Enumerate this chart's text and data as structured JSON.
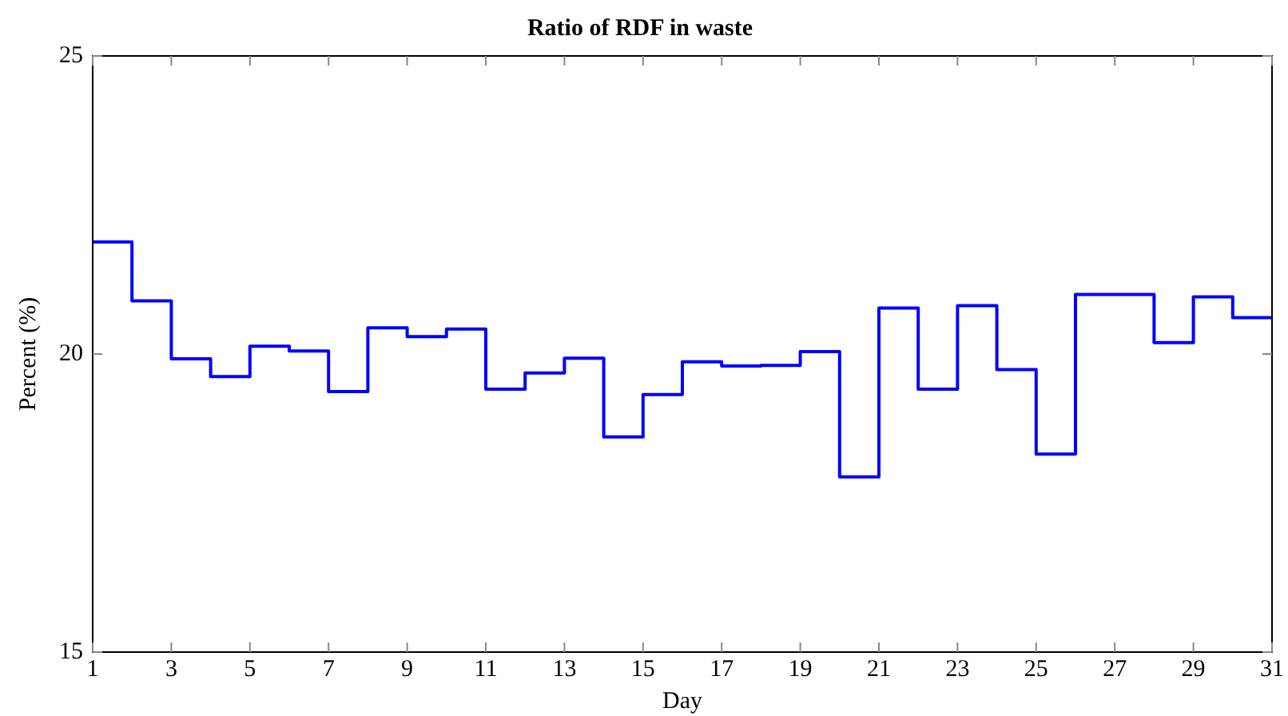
{
  "chart_data": {
    "type": "step",
    "title": "Ratio of RDF in waste",
    "xlabel": "Day",
    "ylabel": "Percent (%)",
    "x": [
      1,
      2,
      3,
      4,
      5,
      6,
      7,
      8,
      9,
      10,
      11,
      12,
      13,
      14,
      15,
      16,
      17,
      18,
      19,
      20,
      21,
      22,
      23,
      24,
      25,
      26,
      27,
      28,
      29,
      30,
      31
    ],
    "series": [
      {
        "color": "#0000ff",
        "values": [
          21.88,
          20.89,
          19.92,
          19.62,
          20.13,
          20.05,
          19.37,
          20.44,
          20.29,
          20.42,
          19.41,
          19.68,
          19.93,
          18.61,
          19.32,
          19.87,
          19.8,
          19.81,
          20.04,
          17.94,
          20.77,
          19.41,
          20.81,
          19.74,
          18.32,
          21.0,
          21.0,
          20.19,
          20.96,
          20.61,
          20.61
        ]
      }
    ],
    "xlim": [
      1,
      31
    ],
    "xticks": [
      1,
      3,
      5,
      7,
      9,
      11,
      13,
      15,
      17,
      19,
      21,
      23,
      25,
      27,
      29,
      31
    ],
    "ylim": [
      15,
      25
    ],
    "yticks": [
      15,
      20,
      25
    ],
    "grid": false,
    "legend": false,
    "marker": "none",
    "line_style": "solid"
  }
}
